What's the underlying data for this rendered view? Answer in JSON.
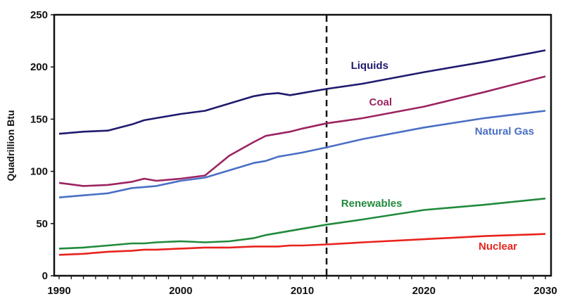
{
  "chart_data": {
    "type": "line",
    "title": "",
    "xlabel": "",
    "ylabel": "Quadrillion Btu",
    "xlim": [
      1990,
      2030
    ],
    "ylim": [
      0,
      250
    ],
    "x_ticks": [
      1990,
      2000,
      2010,
      2020,
      2030
    ],
    "x_tick_labels": [
      "1990",
      "2000",
      "2010",
      "2020",
      "2030"
    ],
    "y_ticks": [
      0,
      50,
      100,
      150,
      200,
      250
    ],
    "y_tick_labels": [
      "0",
      "50",
      "100",
      "150",
      "200",
      "250"
    ],
    "grid": false,
    "legend": "inline labels",
    "vertical_marker": {
      "x": 2012,
      "style": "dashed",
      "color": "#111111"
    },
    "x": [
      1990,
      1992,
      1994,
      1996,
      1997,
      1998,
      2000,
      2002,
      2004,
      2006,
      2007,
      2008,
      2009,
      2010,
      2012,
      2015,
      2020,
      2025,
      2030
    ],
    "series": [
      {
        "name": "Liquids",
        "color": "#1f1a6e",
        "values": [
          136,
          138,
          139,
          145,
          149,
          151,
          155,
          158,
          165,
          172,
          174,
          175,
          173,
          175,
          179,
          184,
          195,
          205,
          216
        ]
      },
      {
        "name": "Coal",
        "color": "#9b2461",
        "values": [
          89,
          86,
          87,
          90,
          93,
          91,
          93,
          96,
          115,
          128,
          134,
          136,
          138,
          141,
          146,
          151,
          162,
          176,
          191
        ]
      },
      {
        "name": "Natural Gas",
        "color": "#4a6fc4",
        "values": [
          75,
          77,
          79,
          84,
          85,
          86,
          91,
          94,
          101,
          108,
          110,
          114,
          116,
          118,
          123,
          131,
          142,
          151,
          158
        ]
      },
      {
        "name": "Renewables",
        "color": "#218a3c",
        "values": [
          26,
          27,
          29,
          31,
          31,
          32,
          33,
          32,
          33,
          36,
          39,
          41,
          43,
          45,
          49,
          54,
          63,
          68,
          74
        ]
      },
      {
        "name": "Nuclear",
        "color": "#e8231d",
        "values": [
          20,
          21,
          23,
          24,
          25,
          25,
          26,
          27,
          27,
          28,
          28,
          28,
          29,
          29,
          30,
          32,
          35,
          38,
          40
        ]
      }
    ],
    "annotations": [
      {
        "text": "Liquids",
        "series": "Liquids",
        "x": 2014,
        "y": 198
      },
      {
        "text": "Coal",
        "series": "Coal",
        "x": 2015.5,
        "y": 163
      },
      {
        "text": "Natural Gas",
        "series": "Natural Gas",
        "x": 2024.2,
        "y": 135
      },
      {
        "text": "Renewables",
        "series": "Renewables",
        "x": 2013.2,
        "y": 66
      },
      {
        "text": "Nuclear",
        "series": "Nuclear",
        "x": 2024.5,
        "y": 25
      }
    ]
  }
}
